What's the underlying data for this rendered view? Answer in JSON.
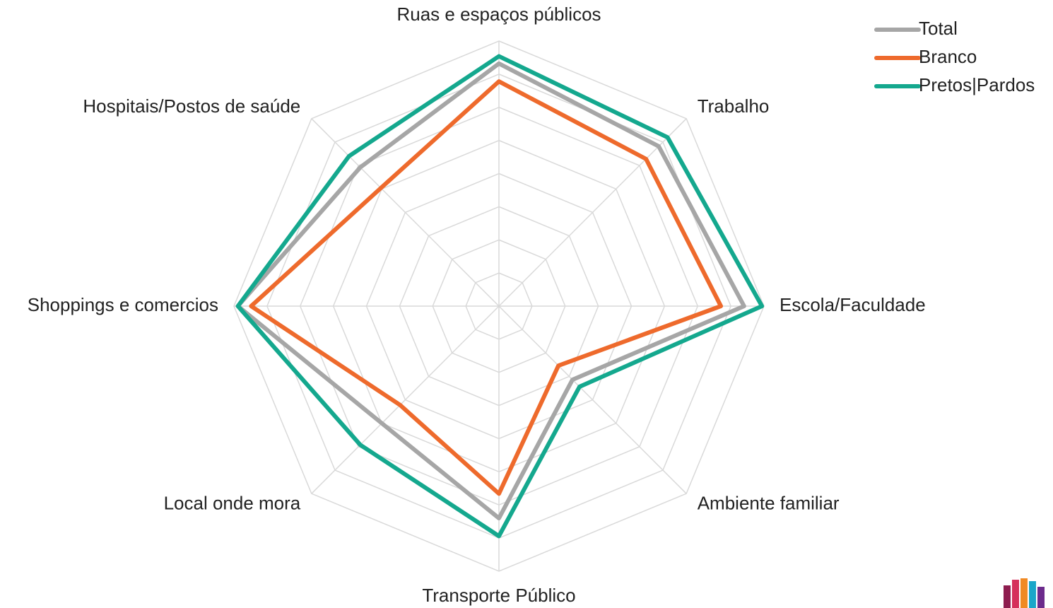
{
  "chart_data": {
    "type": "radar",
    "categories": [
      "Ruas e espaços públicos",
      "Trabalho",
      "Escola/Faculdade",
      "Ambiente familiar",
      "Transporte Público",
      "Local onde mora",
      "Shoppings e comercios",
      "Hospitais/Postos de saúde"
    ],
    "series": [
      {
        "name": "Total",
        "color": "#a6a6a6",
        "values": [
          36.6,
          34.1,
          37,
          15.7,
          32,
          25,
          39.4,
          29.6
        ]
      },
      {
        "name": "Branco",
        "color": "#ee6a2c",
        "values": [
          33.9,
          31.4,
          33.5,
          12.7,
          28.3,
          21.1,
          37.4,
          25.2
        ]
      },
      {
        "name": "Pretos|Pardos",
        "color": "#14a88e",
        "values": [
          37.7,
          36,
          39.7,
          17.2,
          34.7,
          29.6,
          39.4,
          32
        ]
      }
    ],
    "rlim": [
      0,
      40
    ],
    "rticks": [
      5,
      10,
      15,
      20,
      25,
      30,
      35,
      40
    ],
    "grid": true,
    "legend": "top-right"
  }
}
